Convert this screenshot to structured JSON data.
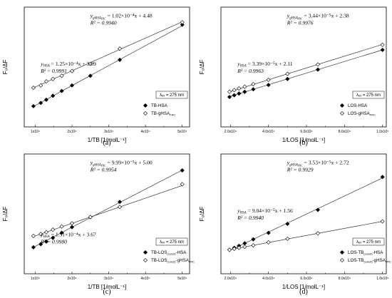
{
  "chart_data": [
    {
      "type": "scatter",
      "caption": "(a)",
      "xlabel": "1/TB [1/molL⁻¹]",
      "ylabel": "F₀/ΔF",
      "xticks": [
        "1x10⁴",
        "2x10⁴",
        "3x10⁴",
        "4x10⁴",
        "5x10⁴"
      ],
      "xtick_values": [
        10000,
        20000,
        30000,
        40000,
        50000
      ],
      "xlim": [
        7000,
        52000
      ],
      "ylim": [
        3,
        10.5
      ],
      "lambda_box": "λₑₓ = 275 nm",
      "equations": [
        {
          "lhs": "ygʜˢᴬᶠᴿᶜ",
          "lhs_main": "y",
          "lhs_sub": "gHSA",
          "lhs_subsub": "FRC",
          "rhs": " = 1.02×10⁻⁴x + 4.48",
          "r2": "R² = 0.9940"
        },
        {
          "lhs_main": "y",
          "lhs_sub": "HSA",
          "lhs_subsub": "",
          "rhs": " = 1.25×10⁻⁴x + 3.09",
          "r2": "R² = 0.9991"
        }
      ],
      "series": [
        {
          "name": "TB-HSA",
          "name_sub": "",
          "marker": "filled-diamond",
          "slope": 0.000125,
          "intercept": 3.09,
          "x": [
            9500,
            11500,
            13000,
            14800,
            17200,
            20000,
            25000,
            33000,
            50000
          ],
          "y": [
            4.3,
            4.5,
            4.7,
            4.95,
            5.25,
            5.6,
            6.2,
            7.2,
            9.4
          ]
        },
        {
          "name": "TB-gHSA",
          "name_sub": "FRC",
          "marker": "open-diamond",
          "slope": 0.000102,
          "intercept": 4.48,
          "x": [
            9500,
            11500,
            13000,
            14800,
            17200,
            20000,
            25000,
            33000,
            50000
          ],
          "y": [
            5.45,
            5.6,
            5.85,
            6.0,
            6.2,
            6.5,
            6.95,
            7.9,
            9.55
          ]
        }
      ]
    },
    {
      "type": "scatter",
      "caption": "(b)",
      "xlabel": "1/LOS [1/molL⁻¹]",
      "ylabel": "F₀/ΔF",
      "xticks": [
        "2.0x10⁴",
        "4.0x10⁴",
        "6.0x10⁴",
        "8.0x10⁴",
        "1.0x10⁵"
      ],
      "xtick_values": [
        20000,
        40000,
        60000,
        80000,
        100000
      ],
      "xlim": [
        15000,
        102000
      ],
      "ylim": [
        1,
        8
      ],
      "lambda_box": "λₑₓ = 275 nm",
      "equations": [
        {
          "lhs_main": "y",
          "lhs_sub": "gHSA",
          "lhs_subsub": "FRC",
          "rhs": " = 3.44×10⁻⁵x + 2.38",
          "r2": "R² = 0.9976"
        },
        {
          "lhs_main": "y",
          "lhs_sub": "HSA",
          "lhs_subsub": "",
          "rhs": " = 3.39×10⁻⁵x + 2.11",
          "r2": "R² = 0.9963"
        }
      ],
      "series": [
        {
          "name": "LOS-HSA",
          "name_sub": "",
          "marker": "filled-diamond",
          "slope": 3.39e-05,
          "intercept": 2.11,
          "x": [
            19500,
            22000,
            24500,
            27500,
            32000,
            40000,
            50000,
            66000,
            100000
          ],
          "y": [
            2.75,
            2.85,
            2.95,
            3.05,
            3.2,
            3.45,
            3.8,
            4.35,
            5.5
          ]
        },
        {
          "name": "LOS-gHSA",
          "name_sub": "FRC",
          "marker": "open-diamond",
          "slope": 3.44e-05,
          "intercept": 2.38,
          "x": [
            19500,
            22000,
            24500,
            27500,
            32000,
            40000,
            50000,
            66000,
            100000
          ],
          "y": [
            3.05,
            3.15,
            3.25,
            3.35,
            3.5,
            3.75,
            4.1,
            4.65,
            5.8
          ]
        }
      ]
    },
    {
      "type": "scatter",
      "caption": "(c)",
      "xlabel": "1/TB [1/molL⁻¹]",
      "ylabel": "F₀/ΔF",
      "xticks": [
        "1x10⁴",
        "2x10⁴",
        "3x10⁴",
        "4x10⁴",
        "5x10⁴"
      ],
      "xtick_values": [
        10000,
        20000,
        30000,
        40000,
        50000
      ],
      "xlim": [
        7000,
        52000
      ],
      "ylim": [
        3,
        12.5
      ],
      "lambda_box": "λₑₓ = 275 nm",
      "equations": [
        {
          "lhs_main": "y",
          "lhs_sub": "gHSA",
          "lhs_subsub": "FRC",
          "rhs": " = 9.99×10⁻⁵x + 5.00",
          "r2": "R² = 0.9954"
        },
        {
          "lhs_main": "y",
          "lhs_sub": "HSA",
          "lhs_subsub": "",
          "rhs": " = 1.51×10⁻⁴x + 3.67",
          "r2": "R² = 0.9980"
        }
      ],
      "series": [
        {
          "name": "TB-LOS",
          "name_sub": "(const)",
          "name_tail": "-HSA",
          "marker": "filled-diamond",
          "slope": 0.000151,
          "intercept": 3.67,
          "x": [
            9500,
            11500,
            13000,
            14800,
            17200,
            20000,
            25000,
            33000,
            50000
          ],
          "y": [
            5.1,
            5.35,
            5.55,
            5.85,
            6.25,
            6.7,
            7.5,
            8.7,
            11.2
          ]
        },
        {
          "name": "TB-LOS",
          "name_sub": "(const)",
          "name_tail": "-gHSA",
          "name_tail_sub": "FRC",
          "marker": "open-diamond",
          "slope": 9.99e-05,
          "intercept": 5.0,
          "x": [
            9500,
            11500,
            13000,
            14800,
            17200,
            20000,
            25000,
            33000,
            50000
          ],
          "y": [
            6.0,
            6.15,
            6.3,
            6.5,
            6.75,
            7.0,
            7.5,
            8.3,
            10.1
          ]
        }
      ]
    },
    {
      "type": "scatter",
      "caption": "(d)",
      "xlabel": "1/LOS [1/molL⁻¹]",
      "ylabel": "F₀/ΔF",
      "xticks": [
        "2.0x10⁴",
        "4.0x10⁴",
        "6.0x10⁴",
        "8.0x10⁴",
        "1.0x10⁵"
      ],
      "xtick_values": [
        20000,
        40000,
        60000,
        80000,
        100000
      ],
      "xlim": [
        15000,
        102000
      ],
      "ylim": [
        1,
        13
      ],
      "lambda_box": "λₑₓ = 275 nm",
      "equations": [
        {
          "lhs_main": "y",
          "lhs_sub": "gHSA",
          "lhs_subsub": "FRC",
          "rhs": " = 3.53×10⁻⁵x + 2.72",
          "r2": "R² = 0.9929"
        },
        {
          "lhs_main": "y",
          "lhs_sub": "HSA",
          "lhs_subsub": "",
          "rhs": " = 9.04×10⁻⁵x + 1.56",
          "r2": "R² = 0.9940"
        }
      ],
      "series": [
        {
          "name": "LOS-TB",
          "name_sub": "(const)",
          "name_tail": "-HSA",
          "marker": "filled-diamond",
          "slope": 9.04e-05,
          "intercept": 1.56,
          "x": [
            19500,
            22000,
            24500,
            27500,
            32000,
            40000,
            50000,
            66000,
            100000
          ],
          "y": [
            3.4,
            3.6,
            3.8,
            4.05,
            4.45,
            5.1,
            6.0,
            7.4,
            10.7
          ]
        },
        {
          "name": "LOS-TB",
          "name_sub": "(const)",
          "name_tail": "-gHSA",
          "name_tail_sub": "FRC",
          "marker": "open-diamond",
          "slope": 3.53e-05,
          "intercept": 2.72,
          "x": [
            19500,
            22000,
            24500,
            27500,
            32000,
            40000,
            50000,
            66000,
            100000
          ],
          "y": [
            3.4,
            3.5,
            3.6,
            3.7,
            3.85,
            4.15,
            4.5,
            5.05,
            6.25
          ]
        }
      ]
    }
  ]
}
